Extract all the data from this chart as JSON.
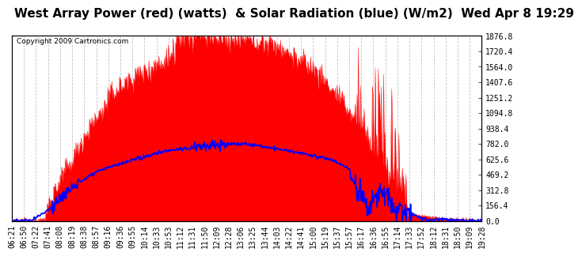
{
  "title": "West Array Power (red) (watts)  & Solar Radiation (blue) (W/m2)  Wed Apr 8 19:29",
  "copyright": "Copyright 2009 Cartronics.com",
  "ylabel_right_ticks": [
    0.0,
    156.4,
    312.8,
    469.2,
    625.6,
    782.0,
    938.4,
    1094.8,
    1251.2,
    1407.6,
    1564.0,
    1720.4,
    1876.8
  ],
  "ymax": 1876.8,
  "ymin": 0.0,
  "bg_color": "#ffffff",
  "plot_bg_color": "#ffffff",
  "grid_color": "#bbbbbb",
  "fill_color": "#ff0000",
  "line_color": "#0000ff",
  "title_fontsize": 11,
  "tick_fontsize": 7,
  "copyright_fontsize": 6.5
}
